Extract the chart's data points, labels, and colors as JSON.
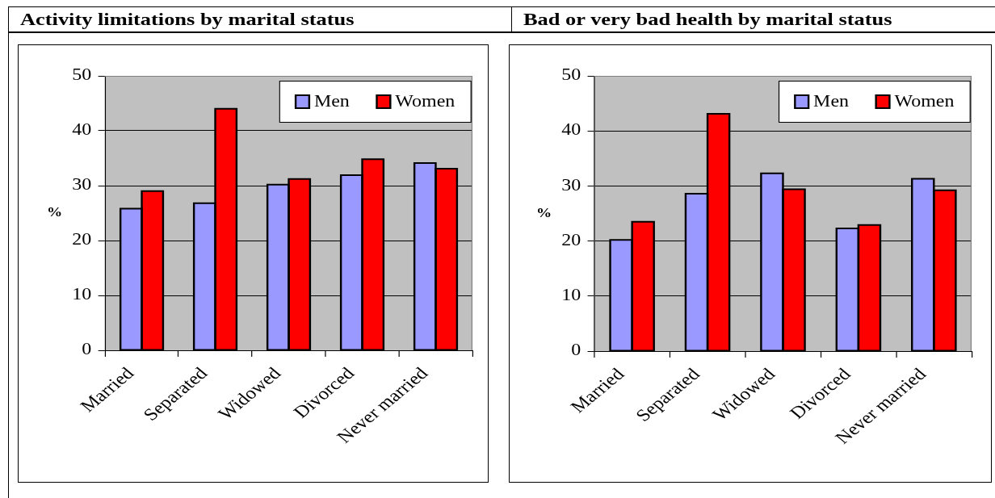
{
  "chart_data": [
    {
      "type": "bar",
      "title": "Activity limitations by marital status",
      "ylabel": "%",
      "categories": [
        "Married",
        "Separated",
        "Widowed",
        "Divorced",
        "Never married"
      ],
      "series": [
        {
          "name": "Men",
          "color": "#9999ff",
          "values": [
            25.8,
            26.8,
            30.2,
            31.9,
            34.1
          ]
        },
        {
          "name": "Women",
          "color": "#ff0000",
          "values": [
            29.0,
            44.0,
            31.2,
            34.8,
            33.1
          ]
        }
      ],
      "ylim": [
        0,
        50
      ],
      "yticks": [
        0,
        10,
        20,
        30,
        40,
        50
      ],
      "grid": "y",
      "legend": "top right"
    },
    {
      "type": "bar",
      "title": "Bad or very bad health by marital status",
      "ylabel": "%",
      "categories": [
        "Married",
        "Separated",
        "Widowed",
        "Divorced",
        "Never married"
      ],
      "series": [
        {
          "name": "Men",
          "color": "#9999ff",
          "values": [
            20.2,
            28.6,
            32.3,
            22.3,
            31.3
          ]
        },
        {
          "name": "Women",
          "color": "#ff0000",
          "values": [
            23.5,
            43.1,
            29.4,
            22.9,
            29.2
          ]
        }
      ],
      "ylim": [
        0,
        50
      ],
      "yticks": [
        0,
        10,
        20,
        30,
        40,
        50
      ],
      "grid": "y",
      "legend": "top right"
    }
  ]
}
